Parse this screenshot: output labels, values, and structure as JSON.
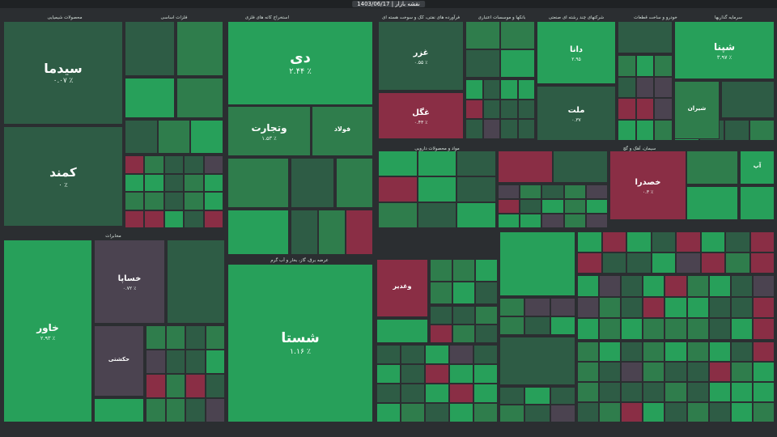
{
  "app": {
    "title": "نقشه بازار | 1403/06/17"
  },
  "colors": {
    "strong_green": "#27a05a",
    "green": "#2f7d4c",
    "dark_green": "#2e5c45",
    "neutral": "#4b4350",
    "red": "#8a2e45",
    "strong_red": "#b8283f",
    "border": "#2b2e31"
  },
  "chart_data": {
    "type": "heatmap",
    "subtype": "treemap",
    "sectors": [
      "محصولات شیمیایی",
      "فلزات اساسی",
      "استخراج کانه های فلزی",
      "فرآورده های نفتی، کک و سوخت هسته ای",
      "بانکها و موسسات اعتباری",
      "شرکتهای چند رشته ای صنعتی",
      "خودرو و ساخت قطعات",
      "سرمایه گذاریها",
      "مخابرات",
      "عرضه برق، گاز، بخار و آب گرم",
      "مواد و محصولات دارویی",
      "سیمان، آهک و گچ"
    ],
    "tickers": [
      {
        "symbol": "سیدما",
        "change": "۰.۰۷ ٪"
      },
      {
        "symbol": "کمند",
        "change": "۰ ٪"
      },
      {
        "symbol": "دی",
        "change": "۲.۴۴ ٪"
      },
      {
        "symbol": "وتجارت",
        "change": "۱.۵۳ ٪"
      },
      {
        "symbol": "شستا",
        "change": "۱.۱۶ ٪"
      },
      {
        "symbol": "خاور",
        "change": "۲.۹۳ ٪"
      },
      {
        "symbol": "خساپا",
        "change": "۰.۷۲ ٪"
      },
      {
        "symbol": "غزر",
        "change": "۰.۵۵ ٪"
      },
      {
        "symbol": "غگل",
        "change": "۰.۴۳ ٪"
      },
      {
        "symbol": "دانا",
        "change": "۲.۹۵"
      },
      {
        "symbol": "ملت",
        "change": "۰.۳۷"
      },
      {
        "symbol": "شپنا",
        "change": "۳.۹۷ ٪"
      },
      {
        "symbol": "خصدرا",
        "change": "۰.۳ ٪"
      },
      {
        "symbol": "وغدیر",
        "change": ""
      },
      {
        "symbol": "شیران",
        "change": ""
      },
      {
        "symbol": "حکشتی",
        "change": ""
      },
      {
        "symbol": "فولاد",
        "change": ""
      },
      {
        "symbol": "آپ",
        "change": ""
      }
    ]
  }
}
